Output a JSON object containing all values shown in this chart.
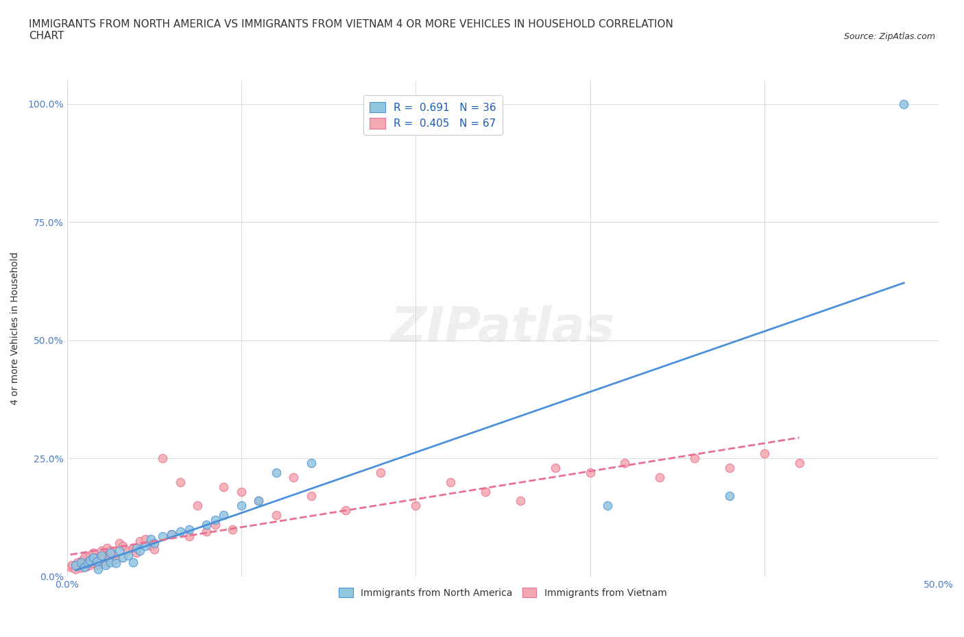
{
  "title": "IMMIGRANTS FROM NORTH AMERICA VS IMMIGRANTS FROM VIETNAM 4 OR MORE VEHICLES IN HOUSEHOLD CORRELATION\nCHART",
  "source_text": "Source: ZipAtlas.com",
  "xlabel": "",
  "ylabel": "4 or more Vehicles in Household",
  "xlim": [
    0.0,
    0.5
  ],
  "ylim": [
    0.0,
    1.05
  ],
  "xticks": [
    0.0,
    0.1,
    0.2,
    0.3,
    0.4,
    0.5
  ],
  "yticks": [
    0.0,
    0.25,
    0.5,
    0.75,
    1.0
  ],
  "xtick_labels": [
    "0.0%",
    "",
    "",
    "",
    "",
    "50.0%"
  ],
  "ytick_labels": [
    "0.0%",
    "25.0%",
    "50.0%",
    "75.0%",
    "100.0%"
  ],
  "watermark": "ZIPatlas",
  "legend_r1": "R =  0.691   N = 36",
  "legend_r2": "R =  0.405   N = 67",
  "blue_color": "#92C5DE",
  "pink_color": "#F4A8B0",
  "line_blue": "#4A90D9",
  "line_pink": "#E87090",
  "north_america_x": [
    0.005,
    0.008,
    0.01,
    0.012,
    0.013,
    0.015,
    0.017,
    0.018,
    0.02,
    0.022,
    0.025,
    0.025,
    0.028,
    0.03,
    0.032,
    0.035,
    0.038,
    0.04,
    0.042,
    0.045,
    0.048,
    0.05,
    0.055,
    0.06,
    0.065,
    0.07,
    0.08,
    0.085,
    0.09,
    0.1,
    0.11,
    0.12,
    0.14,
    0.31,
    0.38,
    0.48
  ],
  "north_america_y": [
    0.025,
    0.03,
    0.02,
    0.028,
    0.035,
    0.04,
    0.032,
    0.015,
    0.045,
    0.025,
    0.03,
    0.05,
    0.028,
    0.055,
    0.04,
    0.045,
    0.03,
    0.06,
    0.055,
    0.065,
    0.08,
    0.07,
    0.085,
    0.09,
    0.095,
    0.1,
    0.11,
    0.12,
    0.13,
    0.15,
    0.16,
    0.22,
    0.24,
    0.15,
    0.17,
    1.0
  ],
  "vietnam_x": [
    0.002,
    0.003,
    0.005,
    0.006,
    0.007,
    0.008,
    0.009,
    0.01,
    0.01,
    0.011,
    0.012,
    0.013,
    0.013,
    0.014,
    0.015,
    0.015,
    0.016,
    0.017,
    0.018,
    0.019,
    0.02,
    0.02,
    0.021,
    0.022,
    0.023,
    0.024,
    0.025,
    0.026,
    0.027,
    0.028,
    0.03,
    0.032,
    0.035,
    0.038,
    0.04,
    0.042,
    0.045,
    0.048,
    0.05,
    0.055,
    0.06,
    0.065,
    0.07,
    0.075,
    0.08,
    0.085,
    0.09,
    0.095,
    0.1,
    0.11,
    0.12,
    0.13,
    0.14,
    0.16,
    0.18,
    0.2,
    0.22,
    0.24,
    0.26,
    0.28,
    0.3,
    0.32,
    0.34,
    0.36,
    0.38,
    0.4,
    0.42
  ],
  "vietnam_y": [
    0.02,
    0.025,
    0.015,
    0.03,
    0.025,
    0.018,
    0.035,
    0.028,
    0.04,
    0.022,
    0.03,
    0.025,
    0.045,
    0.035,
    0.028,
    0.05,
    0.04,
    0.03,
    0.025,
    0.042,
    0.035,
    0.055,
    0.04,
    0.028,
    0.06,
    0.048,
    0.055,
    0.035,
    0.045,
    0.038,
    0.07,
    0.065,
    0.055,
    0.06,
    0.05,
    0.075,
    0.08,
    0.065,
    0.058,
    0.25,
    0.09,
    0.2,
    0.085,
    0.15,
    0.095,
    0.11,
    0.19,
    0.1,
    0.18,
    0.16,
    0.13,
    0.21,
    0.17,
    0.14,
    0.22,
    0.15,
    0.2,
    0.18,
    0.16,
    0.23,
    0.22,
    0.24,
    0.21,
    0.25,
    0.23,
    0.26,
    0.24
  ],
  "bg_color": "#FFFFFF",
  "grid_color": "#CCCCCC",
  "title_fontsize": 11,
  "label_fontsize": 10,
  "tick_fontsize": 10,
  "source_fontsize": 9
}
